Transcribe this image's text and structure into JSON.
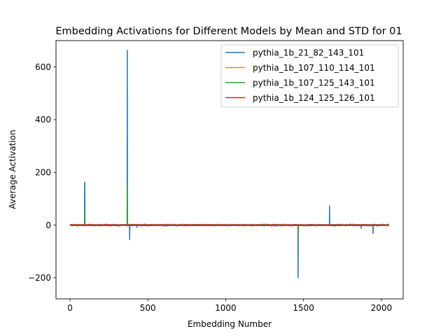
{
  "chart_data": {
    "type": "line",
    "title": "Embedding Activations for Different Models by Mean and STD for 01",
    "xlabel": "Embedding Number",
    "ylabel": "Average Activation",
    "xlim": [
      -90,
      2140
    ],
    "ylim": [
      -280,
      700
    ],
    "xticks": [
      0,
      500,
      1000,
      1500,
      2000
    ],
    "xtick_labels": [
      "0",
      "500",
      "1000",
      "1500",
      "2000"
    ],
    "yticks": [
      -200,
      0,
      200,
      400,
      600
    ],
    "ytick_labels": [
      "−200",
      "0",
      "200",
      "400",
      "600"
    ],
    "grid": false,
    "legend_position": "top-right",
    "n_points": 2048,
    "series": [
      {
        "name": "pythia_1b_21_82_143_101",
        "color": "#1f77b4",
        "noise": 3,
        "spikes": [
          [
            94,
            163
          ],
          [
            95,
            160
          ],
          [
            368,
            663
          ],
          [
            383,
            -55
          ],
          [
            1465,
            -200
          ],
          [
            1667,
            73
          ],
          [
            1947,
            -32
          ],
          [
            1870,
            -12
          ],
          [
            430,
            -8
          ]
        ]
      },
      {
        "name": "pythia_1b_107_110_114_101",
        "color": "#ff7f0e",
        "noise": 2,
        "spikes": [
          [
            94,
            12
          ],
          [
            368,
            20
          ]
        ]
      },
      {
        "name": "pythia_1b_107_125_143_101",
        "color": "#2ca02c",
        "noise": 2,
        "spikes": [
          [
            94,
            45
          ],
          [
            368,
            155
          ],
          [
            1465,
            -40
          ]
        ]
      },
      {
        "name": "pythia_1b_124_125_126_101",
        "color": "#d62728",
        "noise": 1.5,
        "spikes": []
      }
    ]
  }
}
